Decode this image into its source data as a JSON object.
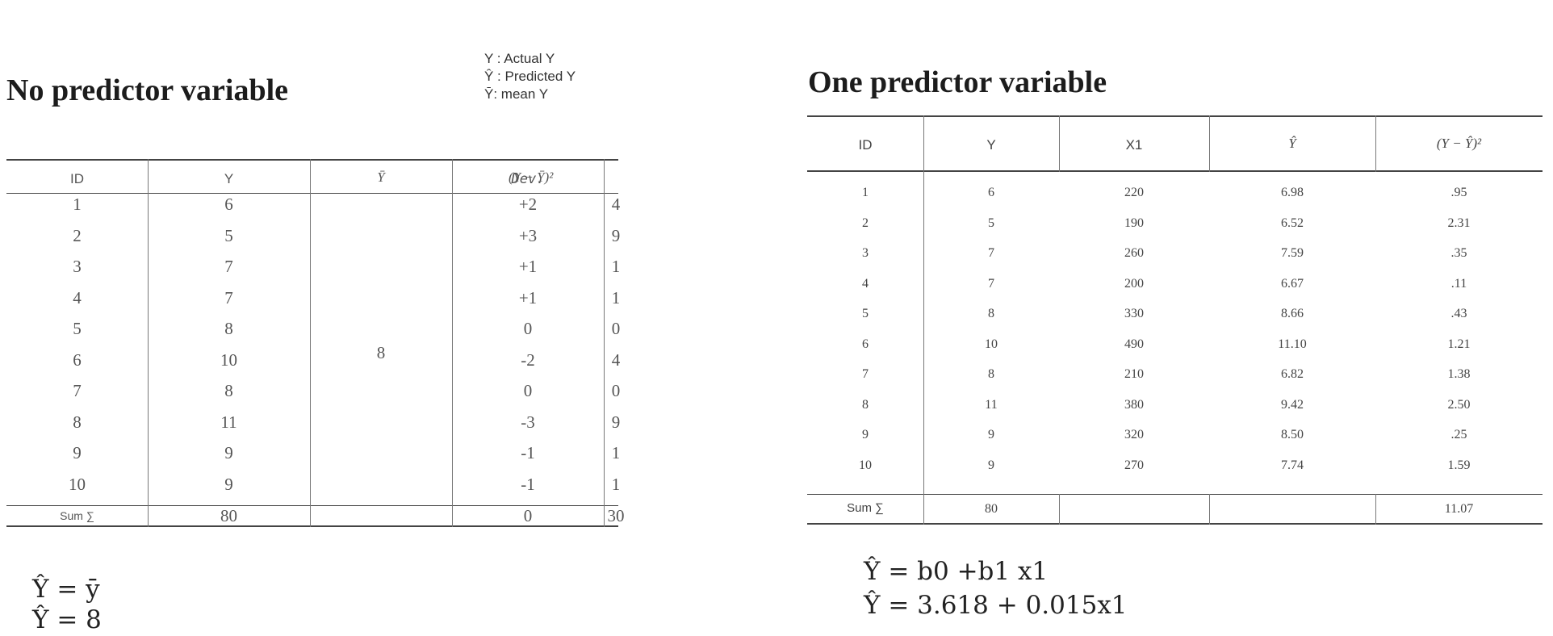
{
  "left": {
    "title": "No predictor variable",
    "legend": [
      "Y : Actual Y",
      "Ŷ : Predicted Y",
      "Ȳ:  mean Y"
    ],
    "headers": [
      "ID",
      "Y",
      "Ȳ",
      "Dev.",
      "(Y − Ȳ)²"
    ],
    "rows": [
      [
        "1",
        "6",
        "+2",
        "4"
      ],
      [
        "2",
        "5",
        "+3",
        "9"
      ],
      [
        "3",
        "7",
        "+1",
        "1"
      ],
      [
        "4",
        "7",
        "+1",
        "1"
      ],
      [
        "5",
        "8",
        "0",
        "0"
      ],
      [
        "6",
        "10",
        "-2",
        "4"
      ],
      [
        "7",
        "8",
        "0",
        "0"
      ],
      [
        "8",
        "11",
        "-3",
        "9"
      ],
      [
        "9",
        "9",
        "-1",
        "1"
      ],
      [
        "10",
        "9",
        "-1",
        "1"
      ]
    ],
    "mean_value": "8",
    "sum_row": [
      "Sum ∑",
      "80",
      "",
      "0",
      "30"
    ],
    "equations": [
      "Ŷ = ȳ",
      "Ŷ = 8"
    ]
  },
  "right": {
    "title": "One predictor variable",
    "headers": [
      "ID",
      "Y",
      "X1",
      "Ŷ",
      "(Y − Ŷ)²"
    ],
    "rows": [
      [
        "1",
        "6",
        "220",
        "6.98",
        ".95"
      ],
      [
        "2",
        "5",
        "190",
        "6.52",
        "2.31"
      ],
      [
        "3",
        "7",
        "260",
        "7.59",
        ".35"
      ],
      [
        "4",
        "7",
        "200",
        "6.67",
        ".11"
      ],
      [
        "5",
        "8",
        "330",
        "8.66",
        ".43"
      ],
      [
        "6",
        "10",
        "490",
        "11.10",
        "1.21"
      ],
      [
        "7",
        "8",
        "210",
        "6.82",
        "1.38"
      ],
      [
        "8",
        "11",
        "380",
        "9.42",
        "2.50"
      ],
      [
        "9",
        "9",
        "320",
        "8.50",
        ".25"
      ],
      [
        "10",
        "9",
        "270",
        "7.74",
        "1.59"
      ]
    ],
    "sum_row": [
      "Sum ∑",
      "80",
      "",
      "",
      "11.07"
    ],
    "equations": [
      "Ŷ = b0 +b1 x1",
      "Ŷ = 3.618 + 0.015x1"
    ]
  }
}
